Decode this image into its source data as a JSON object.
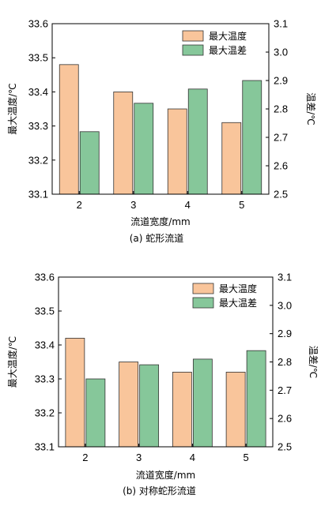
{
  "chart_data": [
    {
      "type": "bar",
      "categories": [
        "2",
        "3",
        "4",
        "5"
      ],
      "series": [
        {
          "name": "最大温度",
          "axis": "left",
          "color": "#f9c59b",
          "values": [
            33.48,
            33.4,
            33.35,
            33.31
          ]
        },
        {
          "name": "最大温差",
          "axis": "right",
          "color": "#86c79a",
          "values": [
            2.72,
            2.82,
            2.87,
            2.9
          ]
        }
      ],
      "xlabel": "流道宽度/mm",
      "ylabel": "最大温度/℃",
      "ylabel_right": "温差/℃",
      "ylim": [
        33.1,
        33.6
      ],
      "ylim_right": [
        2.5,
        3.1
      ],
      "yticks": [
        "33.1",
        "33.2",
        "33.3",
        "33.4",
        "33.5",
        "33.6"
      ],
      "yticks_right": [
        "2.5",
        "2.6",
        "2.7",
        "2.8",
        "2.9",
        "3.0",
        "3.1"
      ],
      "caption": "(a) 蛇形流道",
      "legend_position": "top-right",
      "grid": false
    },
    {
      "type": "bar",
      "categories": [
        "2",
        "3",
        "4",
        "5"
      ],
      "series": [
        {
          "name": "最大温度",
          "axis": "left",
          "color": "#f9c59b",
          "values": [
            33.42,
            33.35,
            33.32,
            33.32
          ]
        },
        {
          "name": "最大温差",
          "axis": "right",
          "color": "#86c79a",
          "values": [
            2.74,
            2.79,
            2.81,
            2.84
          ]
        }
      ],
      "xlabel": "流道宽度/mm",
      "ylabel": "最大温度/℃",
      "ylabel_right": "温差/℃",
      "ylim": [
        33.1,
        33.6
      ],
      "ylim_right": [
        2.5,
        3.1
      ],
      "yticks": [
        "33.1",
        "33.2",
        "33.3",
        "33.4",
        "33.5",
        "33.6"
      ],
      "yticks_right": [
        "2.5",
        "2.6",
        "2.7",
        "2.8",
        "2.9",
        "3.0",
        "3.1"
      ],
      "caption": "(b) 对称蛇形流道",
      "legend_position": "top-right",
      "grid": false
    }
  ]
}
